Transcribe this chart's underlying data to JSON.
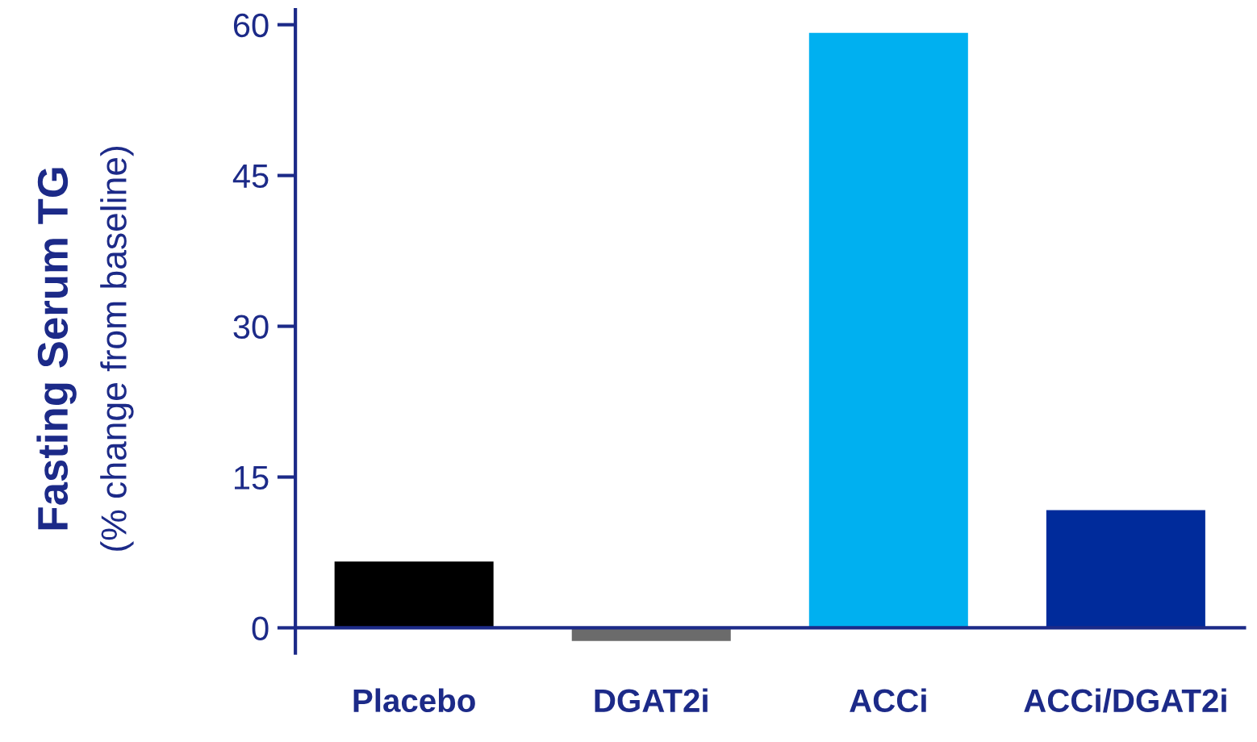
{
  "chart_data": {
    "type": "bar",
    "ylabel": "Fasting Serum TG\n(% change from baseline)",
    "categories": [
      "Placebo",
      "DGAT2i",
      "ACCi",
      "ACCi/DGAT2i"
    ],
    "values": [
      6.6,
      -1.3,
      59.2,
      11.7
    ],
    "colors": [
      "#000000",
      "#6b6b6b",
      "#00b0f0",
      "#002b9b"
    ],
    "ylim": [
      -2.5,
      61.5
    ],
    "yticks": [
      0,
      15,
      30,
      45,
      60
    ],
    "grid": false,
    "legend": false
  }
}
